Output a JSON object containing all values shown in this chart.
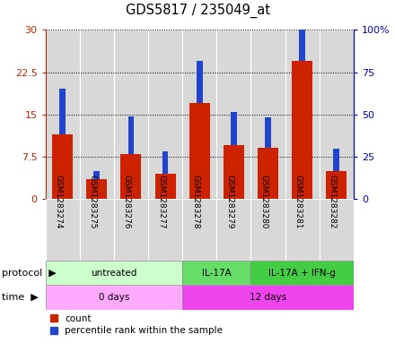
{
  "title": "GDS5817 / 235049_at",
  "samples": [
    "GSM1283274",
    "GSM1283275",
    "GSM1283276",
    "GSM1283277",
    "GSM1283278",
    "GSM1283279",
    "GSM1283280",
    "GSM1283281",
    "GSM1283282"
  ],
  "count_values": [
    11.5,
    3.5,
    8.0,
    4.5,
    17.0,
    9.5,
    9.0,
    24.5,
    5.0
  ],
  "percentile_heights": [
    8.1,
    1.5,
    6.6,
    3.9,
    7.5,
    6.0,
    5.4,
    8.1,
    3.9
  ],
  "ylim_left": [
    0,
    30
  ],
  "ylim_right": [
    0,
    100
  ],
  "yticks_left": [
    0,
    7.5,
    15,
    22.5,
    30
  ],
  "ytick_labels_left": [
    "0",
    "7.5",
    "15",
    "22.5",
    "30"
  ],
  "yticks_right": [
    0,
    25,
    50,
    75,
    100
  ],
  "ytick_labels_right": [
    "0",
    "25",
    "50",
    "75",
    "100%"
  ],
  "bar_color_red": "#cc2200",
  "bar_color_blue": "#2244cc",
  "bar_width": 0.6,
  "blue_bar_width": 0.18,
  "protocol_groups": [
    {
      "label": "untreated",
      "start": 0,
      "end": 4,
      "color": "#ccffcc"
    },
    {
      "label": "IL-17A",
      "start": 4,
      "end": 6,
      "color": "#66dd66"
    },
    {
      "label": "IL-17A + IFN-g",
      "start": 6,
      "end": 9,
      "color": "#44cc44"
    }
  ],
  "time_groups": [
    {
      "label": "0 days",
      "start": 0,
      "end": 4,
      "color": "#ffaaff"
    },
    {
      "label": "12 days",
      "start": 4,
      "end": 9,
      "color": "#ee44ee"
    }
  ],
  "protocol_label": "protocol",
  "time_label": "time",
  "legend_count": "count",
  "legend_percentile": "percentile rank within the sample",
  "bar_bg_color": "#d8d8d8",
  "chart_bg": "#f0f0f0",
  "background_color": "#ffffff",
  "tick_color_left": "#cc2200",
  "tick_color_right": "#0000cc",
  "grid_color": "#000000"
}
